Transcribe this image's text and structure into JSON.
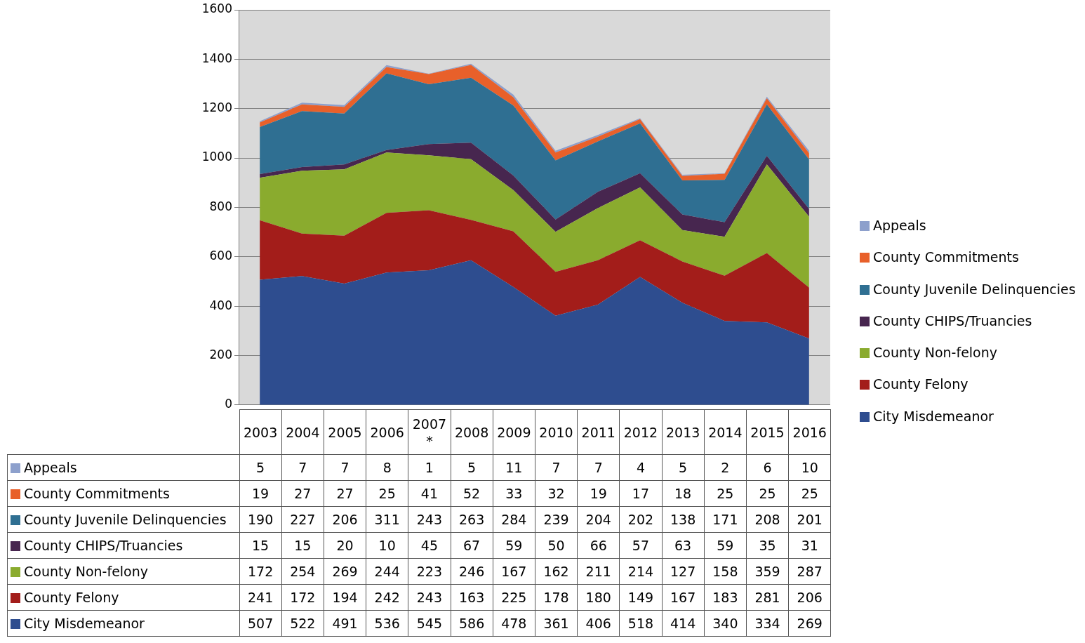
{
  "chart_data": {
    "type": "area",
    "stacked": true,
    "categories": [
      "2003",
      "2004",
      "2005",
      "2006",
      "2007\n*",
      "2008",
      "2009",
      "2010",
      "2011",
      "2012",
      "2013",
      "2014",
      "2015",
      "2016"
    ],
    "series": [
      {
        "name": "City Misdemeanor",
        "color": "#2e4d8f",
        "values": [
          507,
          522,
          491,
          536,
          545,
          586,
          478,
          361,
          406,
          518,
          414,
          340,
          334,
          269
        ]
      },
      {
        "name": "County Felony",
        "color": "#a31d1a",
        "values": [
          241,
          172,
          194,
          242,
          243,
          163,
          225,
          178,
          180,
          149,
          167,
          183,
          281,
          206
        ]
      },
      {
        "name": "County Non-felony",
        "color": "#8aab2e",
        "values": [
          172,
          254,
          269,
          244,
          223,
          246,
          167,
          162,
          211,
          214,
          127,
          158,
          359,
          287
        ]
      },
      {
        "name": "County CHIPS/Truancies",
        "color": "#47264f",
        "values": [
          15,
          15,
          20,
          10,
          45,
          67,
          59,
          50,
          66,
          57,
          63,
          59,
          35,
          31
        ]
      },
      {
        "name": "County Juvenile Delinquencies",
        "color": "#2f6f92",
        "values": [
          190,
          227,
          206,
          311,
          243,
          263,
          284,
          239,
          204,
          202,
          138,
          171,
          208,
          201
        ]
      },
      {
        "name": "County Commitments",
        "color": "#e8602a",
        "values": [
          19,
          27,
          27,
          25,
          41,
          52,
          33,
          32,
          19,
          17,
          18,
          25,
          25,
          25
        ]
      },
      {
        "name": "Appeals",
        "color": "#8da0cc",
        "values": [
          5,
          7,
          7,
          8,
          1,
          5,
          11,
          7,
          7,
          4,
          5,
          2,
          6,
          10
        ]
      }
    ],
    "ylim": [
      0,
      1600
    ],
    "yticks": [
      0,
      200,
      400,
      600,
      800,
      1000,
      1200,
      1400,
      1600
    ],
    "grid": "y",
    "legend": "right",
    "data_labels": true
  }
}
